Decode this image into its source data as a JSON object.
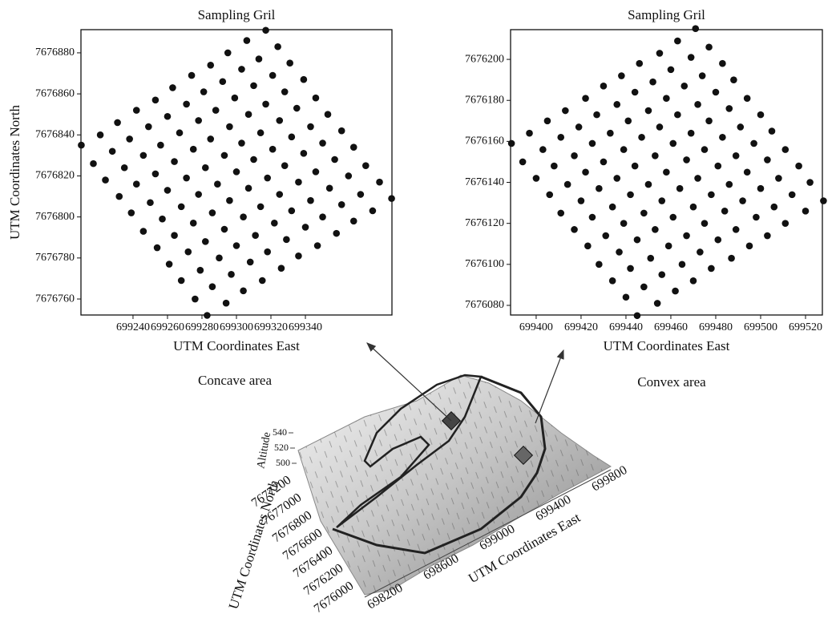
{
  "chart_data": [
    {
      "type": "scatter",
      "title": "Sampling Gril",
      "xlabel": "UTM Coordinates East",
      "ylabel": "UTM Coordinates North",
      "color": "#111111",
      "xlim": [
        699209.8,
        699390.2
      ],
      "ylim": [
        7676752.2,
        7676891.3
      ],
      "xticks": [
        699240,
        699260,
        699280,
        699300,
        699320,
        699340
      ],
      "yticks": [
        7676760,
        7676780,
        7676800,
        7676820,
        7676840,
        7676860,
        7676880
      ],
      "x": [
        699210,
        699217,
        699224,
        699232,
        699239,
        699246,
        699254,
        699261,
        699268,
        699276,
        699283,
        699221,
        699228,
        699235,
        699242,
        699250,
        699257,
        699264,
        699272,
        699279,
        699286,
        699294,
        699231,
        699238,
        699246,
        699253,
        699260,
        699268,
        699275,
        699282,
        699290,
        699297,
        699304,
        699242,
        699249,
        699256,
        699264,
        699271,
        699278,
        699286,
        699293,
        699300,
        699308,
        699315,
        699253,
        699260,
        699267,
        699275,
        699282,
        699289,
        699296,
        699304,
        699311,
        699318,
        699326,
        699263,
        699271,
        699278,
        699285,
        699293,
        699300,
        699307,
        699314,
        699322,
        699329,
        699336,
        699274,
        699281,
        699288,
        699296,
        699303,
        699310,
        699318,
        699325,
        699332,
        699340,
        699347,
        699285,
        699292,
        699299,
        699307,
        699314,
        699321,
        699328,
        699336,
        699343,
        699350,
        699358,
        699295,
        699303,
        699310,
        699317,
        699325,
        699332,
        699339,
        699346,
        699354,
        699361,
        699368,
        699306,
        699313,
        699321,
        699328,
        699335,
        699343,
        699350,
        699357,
        699365,
        699372,
        699379,
        699317,
        699324,
        699331,
        699339,
        699346,
        699353,
        699361,
        699368,
        699375,
        699383,
        699390
      ],
      "values": [
        7676835,
        7676826,
        7676818,
        7676810,
        7676802,
        7676793,
        7676785,
        7676777,
        7676769,
        7676760,
        7676752,
        7676840,
        7676832,
        7676824,
        7676816,
        7676807,
        7676799,
        7676791,
        7676783,
        7676774,
        7676766,
        7676758,
        7676846,
        7676838,
        7676830,
        7676821,
        7676813,
        7676805,
        7676797,
        7676788,
        7676780,
        7676772,
        7676764,
        7676852,
        7676844,
        7676835,
        7676827,
        7676819,
        7676811,
        7676802,
        7676794,
        7676786,
        7676778,
        7676769,
        7676857,
        7676849,
        7676841,
        7676833,
        7676824,
        7676816,
        7676808,
        7676800,
        7676791,
        7676783,
        7676775,
        7676863,
        7676855,
        7676847,
        7676838,
        7676830,
        7676822,
        7676814,
        7676805,
        7676797,
        7676789,
        7676781,
        7676869,
        7676861,
        7676852,
        7676844,
        7676836,
        7676828,
        7676819,
        7676811,
        7676803,
        7676795,
        7676786,
        7676874,
        7676866,
        7676858,
        7676850,
        7676841,
        7676833,
        7676825,
        7676817,
        7676808,
        7676800,
        7676792,
        7676880,
        7676872,
        7676864,
        7676855,
        7676847,
        7676839,
        7676831,
        7676822,
        7676814,
        7676806,
        7676798,
        7676886,
        7676877,
        7676869,
        7676861,
        7676853,
        7676844,
        7676836,
        7676828,
        7676820,
        7676811,
        7676803,
        7676891,
        7676883,
        7676875,
        7676867,
        7676858,
        7676850,
        7676842,
        7676834,
        7676825,
        7676817,
        7676809
      ]
    },
    {
      "type": "scatter",
      "title": "Sampling Gril",
      "xlabel": "UTM Coordinates East",
      "color": "#111111",
      "xlim": [
        699388.6,
        699527.5
      ],
      "ylim": [
        7676075.3,
        7676214.5
      ],
      "xticks": [
        699400,
        699420,
        699440,
        699460,
        699480,
        699500,
        699520
      ],
      "yticks": [
        7676080,
        7676100,
        7676120,
        7676140,
        7676160,
        7676180,
        7676200
      ],
      "x": [
        699389,
        699394,
        699400,
        699406,
        699411,
        699417,
        699423,
        699428,
        699434,
        699440,
        699445,
        699397,
        699403,
        699408,
        699414,
        699420,
        699425,
        699431,
        699437,
        699442,
        699448,
        699454,
        699405,
        699411,
        699417,
        699422,
        699428,
        699434,
        699439,
        699445,
        699451,
        699456,
        699462,
        699413,
        699419,
        699425,
        699430,
        699436,
        699442,
        699448,
        699453,
        699459,
        699465,
        699470,
        699422,
        699427,
        699433,
        699439,
        699444,
        699450,
        699456,
        699461,
        699467,
        699473,
        699478,
        699430,
        699436,
        699441,
        699447,
        699453,
        699458,
        699464,
        699470,
        699475,
        699481,
        699487,
        699438,
        699444,
        699450,
        699455,
        699461,
        699467,
        699472,
        699478,
        699484,
        699489,
        699495,
        699446,
        699452,
        699458,
        699463,
        699469,
        699475,
        699481,
        699486,
        699492,
        699498,
        699503,
        699455,
        699460,
        699466,
        699472,
        699477,
        699483,
        699489,
        699494,
        699500,
        699506,
        699511,
        699463,
        699469,
        699474,
        699480,
        699486,
        699491,
        699497,
        699503,
        699508,
        699514,
        699520,
        699471,
        699477,
        699483,
        699488,
        699494,
        699500,
        699505,
        699511,
        699517,
        699522,
        699528
      ],
      "values": [
        7676159,
        7676150,
        7676142,
        7676134,
        7676125,
        7676117,
        7676109,
        7676100,
        7676092,
        7676084,
        7676075,
        7676164,
        7676156,
        7676148,
        7676139,
        7676131,
        7676123,
        7676114,
        7676106,
        7676098,
        7676089,
        7676081,
        7676170,
        7676162,
        7676153,
        7676145,
        7676137,
        7676128,
        7676120,
        7676112,
        7676103,
        7676095,
        7676087,
        7676175,
        7676167,
        7676159,
        7676150,
        7676142,
        7676134,
        7676125,
        7676117,
        7676109,
        7676100,
        7676092,
        7676181,
        7676173,
        7676164,
        7676156,
        7676148,
        7676139,
        7676131,
        7676123,
        7676114,
        7676106,
        7676098,
        7676187,
        7676178,
        7676170,
        7676162,
        7676153,
        7676145,
        7676137,
        7676128,
        7676120,
        7676112,
        7676103,
        7676192,
        7676184,
        7676175,
        7676167,
        7676159,
        7676151,
        7676142,
        7676134,
        7676126,
        7676117,
        7676109,
        7676198,
        7676189,
        7676181,
        7676173,
        7676164,
        7676156,
        7676148,
        7676139,
        7676131,
        7676123,
        7676114,
        7676203,
        7676195,
        7676187,
        7676178,
        7676170,
        7676162,
        7676153,
        7676145,
        7676137,
        7676128,
        7676120,
        7676209,
        7676201,
        7676192,
        7676184,
        7676176,
        7676167,
        7676159,
        7676151,
        7676142,
        7676134,
        7676126,
        7676215,
        7676206,
        7676198,
        7676190,
        7676181,
        7676173,
        7676165,
        7676156,
        7676148,
        7676140,
        7676131
      ]
    },
    {
      "type": "surface",
      "zlabel": "Altitude",
      "ylabel": "UTM Coordinates North",
      "xlabel": "UTM Coordinates East",
      "annotations": [
        "Concave area",
        "Convex area"
      ],
      "zlim": [
        500,
        540
      ],
      "zticks": [
        500,
        520,
        540
      ],
      "ylim": [
        7676000,
        7677200
      ],
      "yticks": [
        7676000,
        7676200,
        7676400,
        7676600,
        7676800,
        7677000,
        7677200
      ],
      "xlim": [
        698200,
        699800
      ],
      "xticks": [
        698200,
        698600,
        699000,
        699400,
        699800
      ]
    }
  ]
}
